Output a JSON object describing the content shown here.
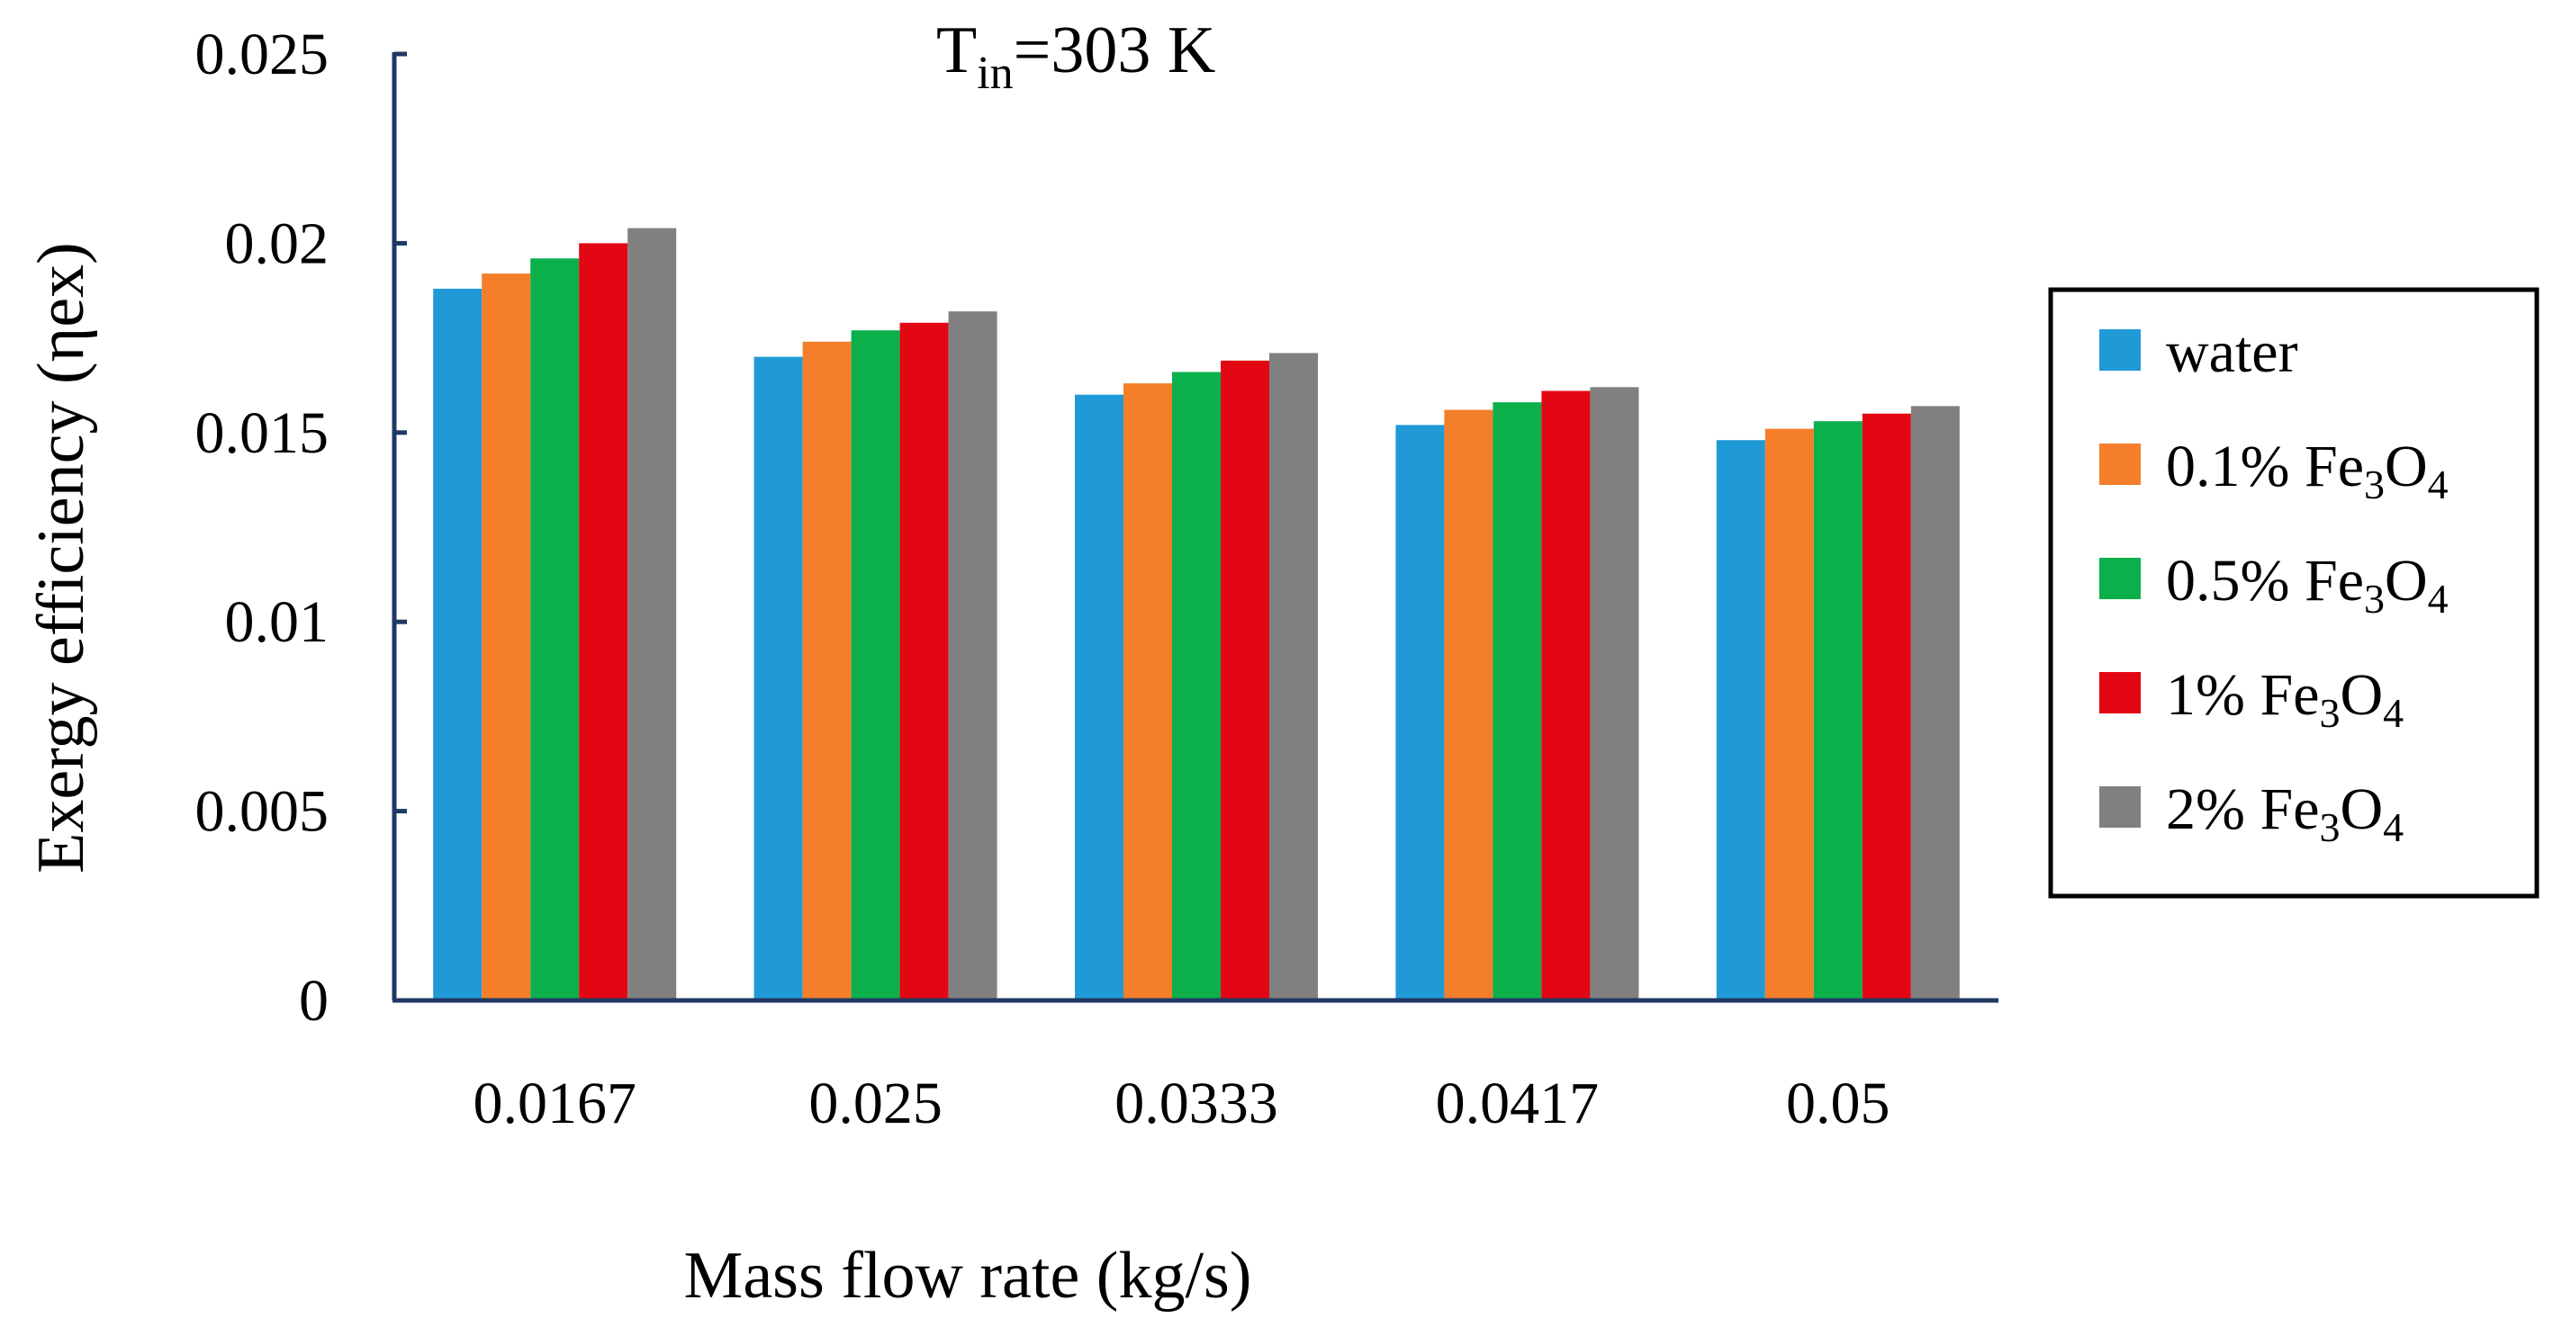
{
  "chart_data": {
    "type": "bar",
    "annotation": {
      "base": "T",
      "sub": "in",
      "rest": "=303 K"
    },
    "xlabel": "Mass flow rate (kg/s)",
    "ylabel": "Exergy efficiency (ηex)",
    "categories": [
      "0.0167",
      "0.025",
      "0.0333",
      "0.0417",
      "0.05"
    ],
    "ylim": [
      0,
      0.025
    ],
    "yticks": [
      {
        "value": 0,
        "label": "0"
      },
      {
        "value": 0.005,
        "label": "0.005"
      },
      {
        "value": 0.01,
        "label": "0.01"
      },
      {
        "value": 0.015,
        "label": "0.015"
      },
      {
        "value": 0.02,
        "label": "0.02"
      },
      {
        "value": 0.025,
        "label": "0.025"
      }
    ],
    "grid": false,
    "legend_position": "right",
    "series": [
      {
        "name": "water",
        "color": "#1F9AD6",
        "legend": {
          "prefix": "water",
          "fe": "",
          "s1": "",
          "mid": "",
          "s2": ""
        },
        "values": [
          0.0188,
          0.017,
          0.016,
          0.0152,
          0.0148
        ]
      },
      {
        "name": "0.1% Fe3O4",
        "color": "#F47E2A",
        "legend": {
          "prefix": "0.1% ",
          "fe": "Fe",
          "s1": "3",
          "mid": "O",
          "s2": "4"
        },
        "values": [
          0.0192,
          0.0174,
          0.0163,
          0.0156,
          0.0151
        ]
      },
      {
        "name": "0.5% Fe3O4",
        "color": "#0BB04B",
        "legend": {
          "prefix": "0.5% ",
          "fe": "Fe",
          "s1": "3",
          "mid": "O",
          "s2": "4"
        },
        "values": [
          0.0196,
          0.0177,
          0.0166,
          0.0158,
          0.0153
        ]
      },
      {
        "name": "1% Fe3O4",
        "color": "#E30613",
        "legend": {
          "prefix": "1% ",
          "fe": "Fe",
          "s1": "3",
          "mid": "O",
          "s2": "4"
        },
        "values": [
          0.02,
          0.0179,
          0.0169,
          0.0161,
          0.0155
        ]
      },
      {
        "name": "2% Fe3O4",
        "color": "#808080",
        "legend": {
          "prefix": "2% ",
          "fe": "Fe",
          "s1": "3",
          "mid": "O",
          "s2": "4"
        },
        "values": [
          0.0204,
          0.0182,
          0.0171,
          0.0162,
          0.0157
        ]
      }
    ]
  }
}
